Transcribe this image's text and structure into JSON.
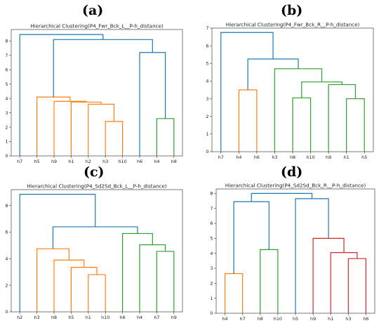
{
  "panel_letters": [
    "(a)",
    "(b)",
    "(c)",
    "(d)"
  ],
  "chart_data": [
    {
      "type": "dendrogram",
      "title": "Hierarchical Clustering(P4_Fwr_Bck_L__P-h_distance)",
      "leaves": [
        "h7",
        "h5",
        "h9",
        "h1",
        "h2",
        "h3",
        "h10",
        "h6",
        "h4",
        "h8"
      ],
      "ylim": [
        0,
        8.8
      ],
      "yticks": [
        0,
        1,
        2,
        3,
        4,
        5,
        6,
        7,
        8
      ],
      "links": [
        {
          "left": "h3",
          "right": "h10",
          "height": 2.4,
          "color": "#ff7f0e"
        },
        {
          "left": "h2",
          "right": "c0",
          "height": 3.6,
          "color": "#ff7f0e"
        },
        {
          "left": "h1",
          "right": "c1",
          "height": 3.75,
          "color": "#ff7f0e"
        },
        {
          "left": "h9",
          "right": "c2",
          "height": 3.8,
          "color": "#ff7f0e"
        },
        {
          "left": "h5",
          "right": "c3",
          "height": 4.1,
          "color": "#ff7f0e"
        },
        {
          "left": "h4",
          "right": "h8",
          "height": 2.6,
          "color": "#2ca02c"
        },
        {
          "left": "h6",
          "right": "c5",
          "height": 7.2,
          "color": "#1f77b4"
        },
        {
          "left": "c4",
          "right": "c6",
          "height": 8.1,
          "color": "#1f77b4"
        },
        {
          "left": "h7",
          "right": "c7",
          "height": 8.45,
          "color": "#1f77b4"
        }
      ]
    },
    {
      "type": "dendrogram",
      "title": "Hierarchical Clustering(P4_Fwr_Bck_R__P-h_distance)",
      "leaves": [
        "h7",
        "h4",
        "h6",
        "h3",
        "h8",
        "h10",
        "h9",
        "h1",
        "h5"
      ],
      "ylim": [
        0,
        7.0
      ],
      "yticks": [
        0,
        1,
        2,
        3,
        4,
        5,
        6,
        7
      ],
      "links": [
        {
          "left": "h4",
          "right": "h6",
          "height": 3.5,
          "color": "#ff7f0e"
        },
        {
          "left": "h8",
          "right": "h10",
          "height": 3.05,
          "color": "#2ca02c"
        },
        {
          "left": "h1",
          "right": "h5",
          "height": 3.0,
          "color": "#2ca02c"
        },
        {
          "left": "h9",
          "right": "c2",
          "height": 3.8,
          "color": "#2ca02c"
        },
        {
          "left": "c1",
          "right": "c3",
          "height": 3.95,
          "color": "#2ca02c"
        },
        {
          "left": "h3",
          "right": "c4",
          "height": 4.7,
          "color": "#2ca02c"
        },
        {
          "left": "c0",
          "right": "c5",
          "height": 5.25,
          "color": "#1f77b4"
        },
        {
          "left": "h7",
          "right": "c6",
          "height": 6.75,
          "color": "#1f77b4"
        }
      ]
    },
    {
      "type": "dendrogram",
      "title": "Hierarchical Clustering(P4_Sd2Sd_Bck_L__P-h_distance)",
      "leaves": [
        "h2",
        "h3",
        "h8",
        "h5",
        "h1",
        "h10",
        "h6",
        "h4",
        "h7",
        "h9"
      ],
      "ylim": [
        0,
        9.2
      ],
      "yticks": [
        0,
        2,
        4,
        6,
        8
      ],
      "links": [
        {
          "left": "h1",
          "right": "h10",
          "height": 2.8,
          "color": "#ff7f0e"
        },
        {
          "left": "h5",
          "right": "c0",
          "height": 3.35,
          "color": "#ff7f0e"
        },
        {
          "left": "h8",
          "right": "c1",
          "height": 3.9,
          "color": "#ff7f0e"
        },
        {
          "left": "h3",
          "right": "c2",
          "height": 4.75,
          "color": "#ff7f0e"
        },
        {
          "left": "h7",
          "right": "h9",
          "height": 4.55,
          "color": "#2ca02c"
        },
        {
          "left": "h4",
          "right": "c4",
          "height": 5.05,
          "color": "#2ca02c"
        },
        {
          "left": "h6",
          "right": "c5",
          "height": 5.9,
          "color": "#2ca02c"
        },
        {
          "left": "c3",
          "right": "c6",
          "height": 6.4,
          "color": "#1f77b4"
        },
        {
          "left": "h2",
          "right": "c7",
          "height": 8.85,
          "color": "#1f77b4"
        }
      ]
    },
    {
      "type": "dendrogram",
      "title": "Hierarchical Clustering(P4_Sd2Sd_Bck_R__P-h_distance)",
      "leaves": [
        "h4",
        "h7",
        "h8",
        "h10",
        "h5",
        "h9",
        "h1",
        "h3",
        "h6"
      ],
      "ylim": [
        0,
        8.3
      ],
      "yticks": [
        0,
        1,
        2,
        3,
        4,
        5,
        6,
        7,
        8
      ],
      "links": [
        {
          "left": "h4",
          "right": "h7",
          "height": 2.65,
          "color": "#ff7f0e"
        },
        {
          "left": "h8",
          "right": "h10",
          "height": 4.25,
          "color": "#2ca02c"
        },
        {
          "left": "c0",
          "right": "c1",
          "height": 7.45,
          "color": "#1f77b4"
        },
        {
          "left": "h3",
          "right": "h6",
          "height": 3.65,
          "color": "#d62728"
        },
        {
          "left": "h1",
          "right": "c3",
          "height": 4.05,
          "color": "#d62728"
        },
        {
          "left": "h9",
          "right": "c4",
          "height": 5.0,
          "color": "#d62728"
        },
        {
          "left": "h5",
          "right": "c5",
          "height": 7.65,
          "color": "#1f77b4"
        },
        {
          "left": "c2",
          "right": "c6",
          "height": 8.0,
          "color": "#1f77b4"
        }
      ]
    }
  ]
}
